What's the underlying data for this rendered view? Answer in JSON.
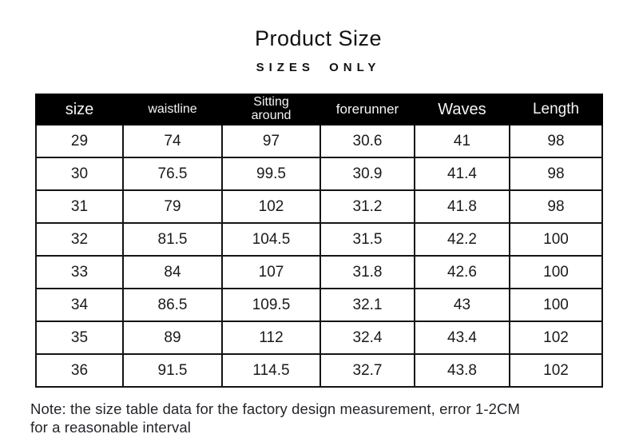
{
  "page": {
    "title": "Product Size",
    "subtitle": "SIZES ONLY",
    "note": "Note: the size table data for the factory design measurement, error 1-2CM for a reasonable interval"
  },
  "chart_data": {
    "type": "table",
    "title": "Product Size",
    "columns": [
      "size",
      "waistline",
      "Sitting around",
      "forerunner",
      "Waves",
      "Length"
    ],
    "rows": [
      [
        "29",
        "74",
        "97",
        "30.6",
        "41",
        "98"
      ],
      [
        "30",
        "76.5",
        "99.5",
        "30.9",
        "41.4",
        "98"
      ],
      [
        "31",
        "79",
        "102",
        "31.2",
        "41.8",
        "98"
      ],
      [
        "32",
        "81.5",
        "104.5",
        "31.5",
        "42.2",
        "100"
      ],
      [
        "33",
        "84",
        "107",
        "31.8",
        "42.6",
        "100"
      ],
      [
        "34",
        "86.5",
        "109.5",
        "32.1",
        "43",
        "100"
      ],
      [
        "35",
        "89",
        "112",
        "32.4",
        "43.4",
        "102"
      ],
      [
        "36",
        "91.5",
        "114.5",
        "32.7",
        "43.8",
        "102"
      ]
    ]
  },
  "colors": {
    "header_bg": "#000000",
    "header_text": "#f5f5f5",
    "body_text": "#1a1a1a",
    "border": "#141414"
  }
}
